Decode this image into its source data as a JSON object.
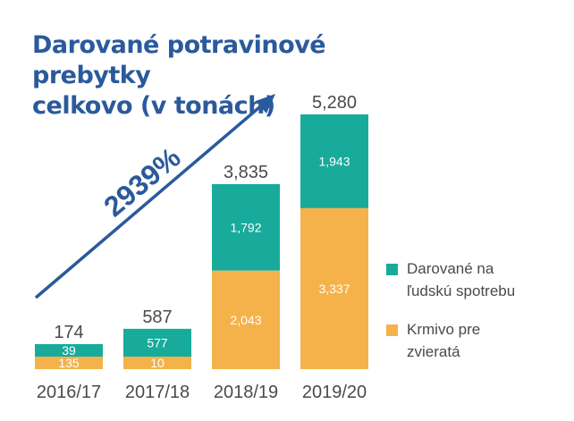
{
  "title_line1": "Darované potravinové prebytky",
  "title_line2": "celkovo (v tonách)",
  "growth_label": "2939%",
  "colors": {
    "title": "#2a5a9c",
    "arrow": "#2a5a9c",
    "human": "#18ab9b",
    "animal": "#f5b24a",
    "text": "#4a4a4a"
  },
  "legend": [
    {
      "key": "human",
      "line1": "Darované na",
      "line2": "ľudskú spotrebu"
    },
    {
      "key": "animal",
      "line1": "Krmivo pre",
      "line2": "zvieratá"
    }
  ],
  "chart_data": {
    "type": "bar",
    "stacked": true,
    "title": "Darované potravinové prebytky celkovo (v tonách)",
    "categories": [
      "2016/17",
      "2017/18",
      "2018/19",
      "2019/20"
    ],
    "totals": [
      174,
      587,
      3835,
      5280
    ],
    "total_labels": [
      "174",
      "587",
      "3,835",
      "5,280"
    ],
    "series": [
      {
        "name": "Krmivo pre zvieratá",
        "key": "animal",
        "values": [
          135,
          10,
          2043,
          3337
        ],
        "labels": [
          "135",
          "10",
          "2,043",
          "3,337"
        ]
      },
      {
        "name": "Darované na ľudskú spotrebu",
        "key": "human",
        "values": [
          39,
          577,
          1792,
          1943
        ],
        "labels": [
          "39",
          "577",
          "1,792",
          "1,943"
        ]
      }
    ],
    "ylim": [
      0,
      5280
    ],
    "grid": false,
    "legend_position": "right",
    "annotation": "2939%"
  }
}
